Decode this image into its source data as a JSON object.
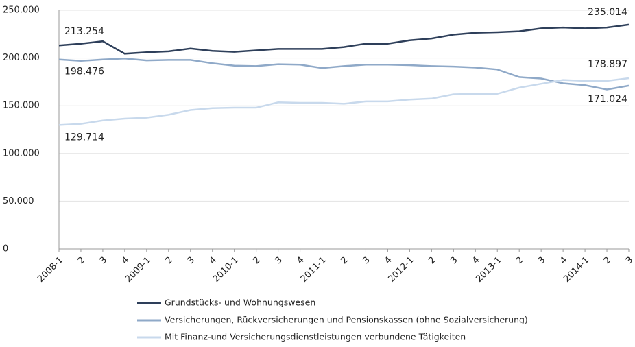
{
  "chart_data": {
    "type": "line",
    "categories": [
      "2008-1",
      "2",
      "3",
      "4",
      "2009-1",
      "2",
      "3",
      "4",
      "2010-1",
      "2",
      "3",
      "4",
      "2011-1",
      "2",
      "3",
      "4",
      "2012-1",
      "2",
      "3",
      "4",
      "2013-1",
      "2",
      "3",
      "4",
      "2014-1",
      "2",
      "3"
    ],
    "series": [
      {
        "name": "Grundstücks- und Wohnungswesen",
        "color": "#2e3f5a",
        "values": [
          213254,
          215000,
          217500,
          204500,
          206000,
          207000,
          210000,
          207500,
          206500,
          208000,
          209500,
          209500,
          209500,
          211500,
          215000,
          215000,
          218500,
          220500,
          224500,
          226500,
          227000,
          228000,
          231000,
          232000,
          231000,
          232000,
          235014
        ],
        "value_labels": [
          "213.254",
          null,
          null,
          null,
          null,
          null,
          null,
          null,
          null,
          null,
          null,
          null,
          null,
          null,
          null,
          null,
          null,
          null,
          null,
          null,
          null,
          null,
          null,
          null,
          null,
          null,
          "235.014"
        ]
      },
      {
        "name": "Versicherungen, Rückversicherungen und Pensionskassen (ohne Sozialversicherung)",
        "color": "#8fa9c8",
        "values": [
          198476,
          197000,
          198500,
          199500,
          197500,
          198000,
          198000,
          194500,
          192000,
          191500,
          193500,
          193000,
          189500,
          191500,
          193000,
          193000,
          192500,
          191500,
          191000,
          190000,
          188000,
          180000,
          178500,
          173500,
          171500,
          167000,
          171024
        ],
        "value_labels": [
          "198.476",
          null,
          null,
          null,
          null,
          null,
          null,
          null,
          null,
          null,
          null,
          null,
          null,
          null,
          null,
          null,
          null,
          null,
          null,
          null,
          null,
          null,
          null,
          null,
          null,
          null,
          "171.024"
        ]
      },
      {
        "name": "Mit Finanz-und Versicherungsdienstleistungen verbundene Tätigkeiten",
        "color": "#c8d9ec",
        "values": [
          129714,
          131000,
          134500,
          136500,
          137500,
          140500,
          145500,
          147500,
          148000,
          148000,
          153500,
          153000,
          153000,
          152000,
          154500,
          154500,
          156500,
          157500,
          162000,
          162500,
          162500,
          169000,
          173000,
          177000,
          176000,
          176000,
          178897
        ],
        "value_labels": [
          "129.714",
          null,
          null,
          null,
          null,
          null,
          null,
          null,
          null,
          null,
          null,
          null,
          null,
          null,
          null,
          null,
          null,
          null,
          null,
          null,
          null,
          null,
          null,
          null,
          null,
          null,
          "178.897"
        ]
      }
    ],
    "ylim": [
      0,
      250000
    ],
    "yticks": [
      0,
      {
        "value": 50000,
        "label": "50.000"
      },
      {
        "value": 100000,
        "label": "100.000"
      },
      {
        "value": 150000,
        "label": "150.000"
      },
      {
        "value": 200000,
        "label": "200.000"
      },
      {
        "value": 250000,
        "label": "250.000"
      }
    ],
    "grid": true
  }
}
